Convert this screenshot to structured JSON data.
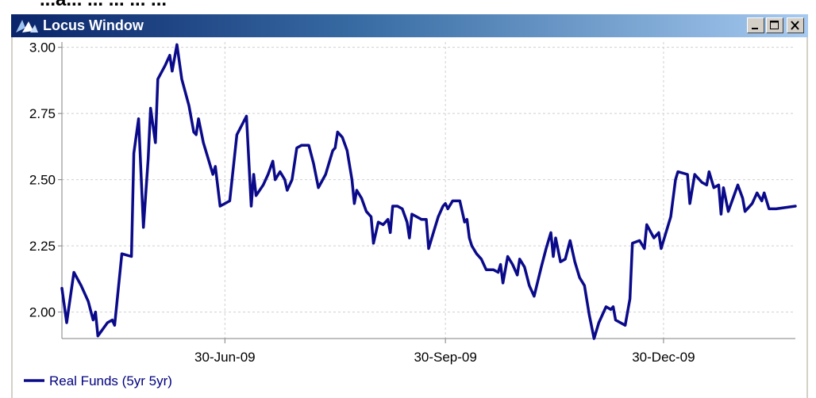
{
  "header_text": "...a... ... ... ... ...",
  "window": {
    "title": "Locus Window",
    "minimize_label": "_",
    "maximize_label": "□",
    "close_label": "X"
  },
  "colors": {
    "line": "#0a0a8a",
    "grid": "#d0d0d0",
    "title_start": "#0a246a",
    "title_end": "#a6caf0"
  },
  "chart_data": {
    "type": "line",
    "title": "",
    "xlabel": "",
    "ylabel": "",
    "ylim": [
      1.9,
      3.02
    ],
    "xlim": [
      "2009-04-23",
      "2010-02-23"
    ],
    "y_ticks": [
      2.0,
      2.25,
      2.5,
      2.75,
      3.0
    ],
    "y_tick_labels": [
      "2.00",
      "2.25",
      "2.50",
      "2.75",
      "3.00"
    ],
    "x_ticks": [
      "2009-06-30",
      "2009-09-30",
      "2009-12-30"
    ],
    "x_tick_labels": [
      "30-Jun-09",
      "30-Sep-09",
      "30-Dec-09"
    ],
    "grid": true,
    "legend_position": "bottom-left",
    "series": [
      {
        "name": "Real Funds (5yr 5yr)",
        "points": [
          [
            "2009-04-23",
            2.09
          ],
          [
            "2009-04-25",
            1.96
          ],
          [
            "2009-04-28",
            2.15
          ],
          [
            "2009-05-01",
            2.1
          ],
          [
            "2009-05-04",
            2.04
          ],
          [
            "2009-05-06",
            1.97
          ],
          [
            "2009-05-07",
            2.0
          ],
          [
            "2009-05-08",
            1.91
          ],
          [
            "2009-05-12",
            1.96
          ],
          [
            "2009-05-14",
            1.97
          ],
          [
            "2009-05-15",
            1.95
          ],
          [
            "2009-05-18",
            2.22
          ],
          [
            "2009-05-22",
            2.21
          ],
          [
            "2009-05-23",
            2.6
          ],
          [
            "2009-05-25",
            2.73
          ],
          [
            "2009-05-27",
            2.32
          ],
          [
            "2009-05-29",
            2.58
          ],
          [
            "2009-05-30",
            2.77
          ],
          [
            "2009-06-01",
            2.64
          ],
          [
            "2009-06-02",
            2.88
          ],
          [
            "2009-06-05",
            2.93
          ],
          [
            "2009-06-07",
            2.97
          ],
          [
            "2009-06-08",
            2.91
          ],
          [
            "2009-06-10",
            3.01
          ],
          [
            "2009-06-12",
            2.88
          ],
          [
            "2009-06-15",
            2.78
          ],
          [
            "2009-06-17",
            2.68
          ],
          [
            "2009-06-18",
            2.67
          ],
          [
            "2009-06-19",
            2.73
          ],
          [
            "2009-06-21",
            2.64
          ],
          [
            "2009-06-23",
            2.58
          ],
          [
            "2009-06-25",
            2.52
          ],
          [
            "2009-06-26",
            2.55
          ],
          [
            "2009-06-28",
            2.4
          ],
          [
            "2009-07-02",
            2.42
          ],
          [
            "2009-07-05",
            2.67
          ],
          [
            "2009-07-09",
            2.74
          ],
          [
            "2009-07-11",
            2.4
          ],
          [
            "2009-07-12",
            2.52
          ],
          [
            "2009-07-13",
            2.44
          ],
          [
            "2009-07-16",
            2.48
          ],
          [
            "2009-07-18",
            2.52
          ],
          [
            "2009-07-20",
            2.57
          ],
          [
            "2009-07-21",
            2.5
          ],
          [
            "2009-07-23",
            2.53
          ],
          [
            "2009-07-25",
            2.5
          ],
          [
            "2009-07-26",
            2.46
          ],
          [
            "2009-07-28",
            2.5
          ],
          [
            "2009-07-30",
            2.62
          ],
          [
            "2009-08-01",
            2.63
          ],
          [
            "2009-08-04",
            2.63
          ],
          [
            "2009-08-06",
            2.56
          ],
          [
            "2009-08-08",
            2.47
          ],
          [
            "2009-08-11",
            2.52
          ],
          [
            "2009-08-14",
            2.61
          ],
          [
            "2009-08-15",
            2.62
          ],
          [
            "2009-08-16",
            2.68
          ],
          [
            "2009-08-18",
            2.66
          ],
          [
            "2009-08-20",
            2.61
          ],
          [
            "2009-08-22",
            2.5
          ],
          [
            "2009-08-23",
            2.41
          ],
          [
            "2009-08-24",
            2.46
          ],
          [
            "2009-08-26",
            2.43
          ],
          [
            "2009-08-28",
            2.38
          ],
          [
            "2009-08-30",
            2.36
          ],
          [
            "2009-08-31",
            2.26
          ],
          [
            "2009-09-02",
            2.34
          ],
          [
            "2009-09-04",
            2.33
          ],
          [
            "2009-09-06",
            2.35
          ],
          [
            "2009-09-07",
            2.3
          ],
          [
            "2009-09-08",
            2.4
          ],
          [
            "2009-09-10",
            2.4
          ],
          [
            "2009-09-12",
            2.39
          ],
          [
            "2009-09-14",
            2.34
          ],
          [
            "2009-09-15",
            2.28
          ],
          [
            "2009-09-16",
            2.37
          ],
          [
            "2009-09-18",
            2.36
          ],
          [
            "2009-09-20",
            2.35
          ],
          [
            "2009-09-22",
            2.35
          ],
          [
            "2009-09-23",
            2.24
          ],
          [
            "2009-09-25",
            2.3
          ],
          [
            "2009-09-27",
            2.36
          ],
          [
            "2009-09-29",
            2.4
          ],
          [
            "2009-09-30",
            2.41
          ],
          [
            "2009-10-01",
            2.39
          ],
          [
            "2009-10-03",
            2.42
          ],
          [
            "2009-10-06",
            2.42
          ],
          [
            "2009-10-08",
            2.34
          ],
          [
            "2009-10-09",
            2.35
          ],
          [
            "2009-10-10",
            2.28
          ],
          [
            "2009-10-11",
            2.25
          ],
          [
            "2009-10-13",
            2.22
          ],
          [
            "2009-10-15",
            2.2
          ],
          [
            "2009-10-17",
            2.16
          ],
          [
            "2009-10-20",
            2.16
          ],
          [
            "2009-10-22",
            2.15
          ],
          [
            "2009-10-23",
            2.18
          ],
          [
            "2009-10-24",
            2.11
          ],
          [
            "2009-10-26",
            2.21
          ],
          [
            "2009-10-28",
            2.18
          ],
          [
            "2009-10-30",
            2.14
          ],
          [
            "2009-10-31",
            2.2
          ],
          [
            "2009-11-02",
            2.17
          ],
          [
            "2009-11-04",
            2.1
          ],
          [
            "2009-11-06",
            2.06
          ],
          [
            "2009-11-09",
            2.17
          ],
          [
            "2009-11-11",
            2.24
          ],
          [
            "2009-11-13",
            2.3
          ],
          [
            "2009-11-14",
            2.21
          ],
          [
            "2009-11-15",
            2.28
          ],
          [
            "2009-11-17",
            2.19
          ],
          [
            "2009-11-19",
            2.2
          ],
          [
            "2009-11-21",
            2.27
          ],
          [
            "2009-11-23",
            2.19
          ],
          [
            "2009-11-25",
            2.13
          ],
          [
            "2009-11-27",
            2.1
          ],
          [
            "2009-11-29",
            1.99
          ],
          [
            "2009-12-01",
            1.9
          ],
          [
            "2009-12-03",
            1.96
          ],
          [
            "2009-12-06",
            2.02
          ],
          [
            "2009-12-08",
            2.01
          ],
          [
            "2009-12-09",
            2.02
          ],
          [
            "2009-12-10",
            1.97
          ],
          [
            "2009-12-14",
            1.95
          ],
          [
            "2009-12-16",
            2.05
          ],
          [
            "2009-12-17",
            2.26
          ],
          [
            "2009-12-20",
            2.27
          ],
          [
            "2009-12-22",
            2.24
          ],
          [
            "2009-12-23",
            2.33
          ],
          [
            "2009-12-26",
            2.28
          ],
          [
            "2009-12-28",
            2.3
          ],
          [
            "2009-12-29",
            2.24
          ],
          [
            "2010-01-02",
            2.36
          ],
          [
            "2010-01-04",
            2.5
          ],
          [
            "2010-01-05",
            2.53
          ],
          [
            "2010-01-09",
            2.52
          ],
          [
            "2010-01-10",
            2.41
          ],
          [
            "2010-01-12",
            2.52
          ],
          [
            "2010-01-15",
            2.49
          ],
          [
            "2010-01-17",
            2.48
          ],
          [
            "2010-01-18",
            2.53
          ],
          [
            "2010-01-20",
            2.47
          ],
          [
            "2010-01-22",
            2.48
          ],
          [
            "2010-01-23",
            2.37
          ],
          [
            "2010-01-24",
            2.47
          ],
          [
            "2010-01-26",
            2.38
          ],
          [
            "2010-01-28",
            2.43
          ],
          [
            "2010-01-30",
            2.48
          ],
          [
            "2010-02-01",
            2.43
          ],
          [
            "2010-02-02",
            2.38
          ],
          [
            "2010-02-05",
            2.41
          ],
          [
            "2010-02-07",
            2.45
          ],
          [
            "2010-02-09",
            2.42
          ],
          [
            "2010-02-10",
            2.45
          ],
          [
            "2010-02-12",
            2.39
          ],
          [
            "2010-02-15",
            2.39
          ],
          [
            "2010-02-23",
            2.4
          ]
        ]
      }
    ]
  }
}
